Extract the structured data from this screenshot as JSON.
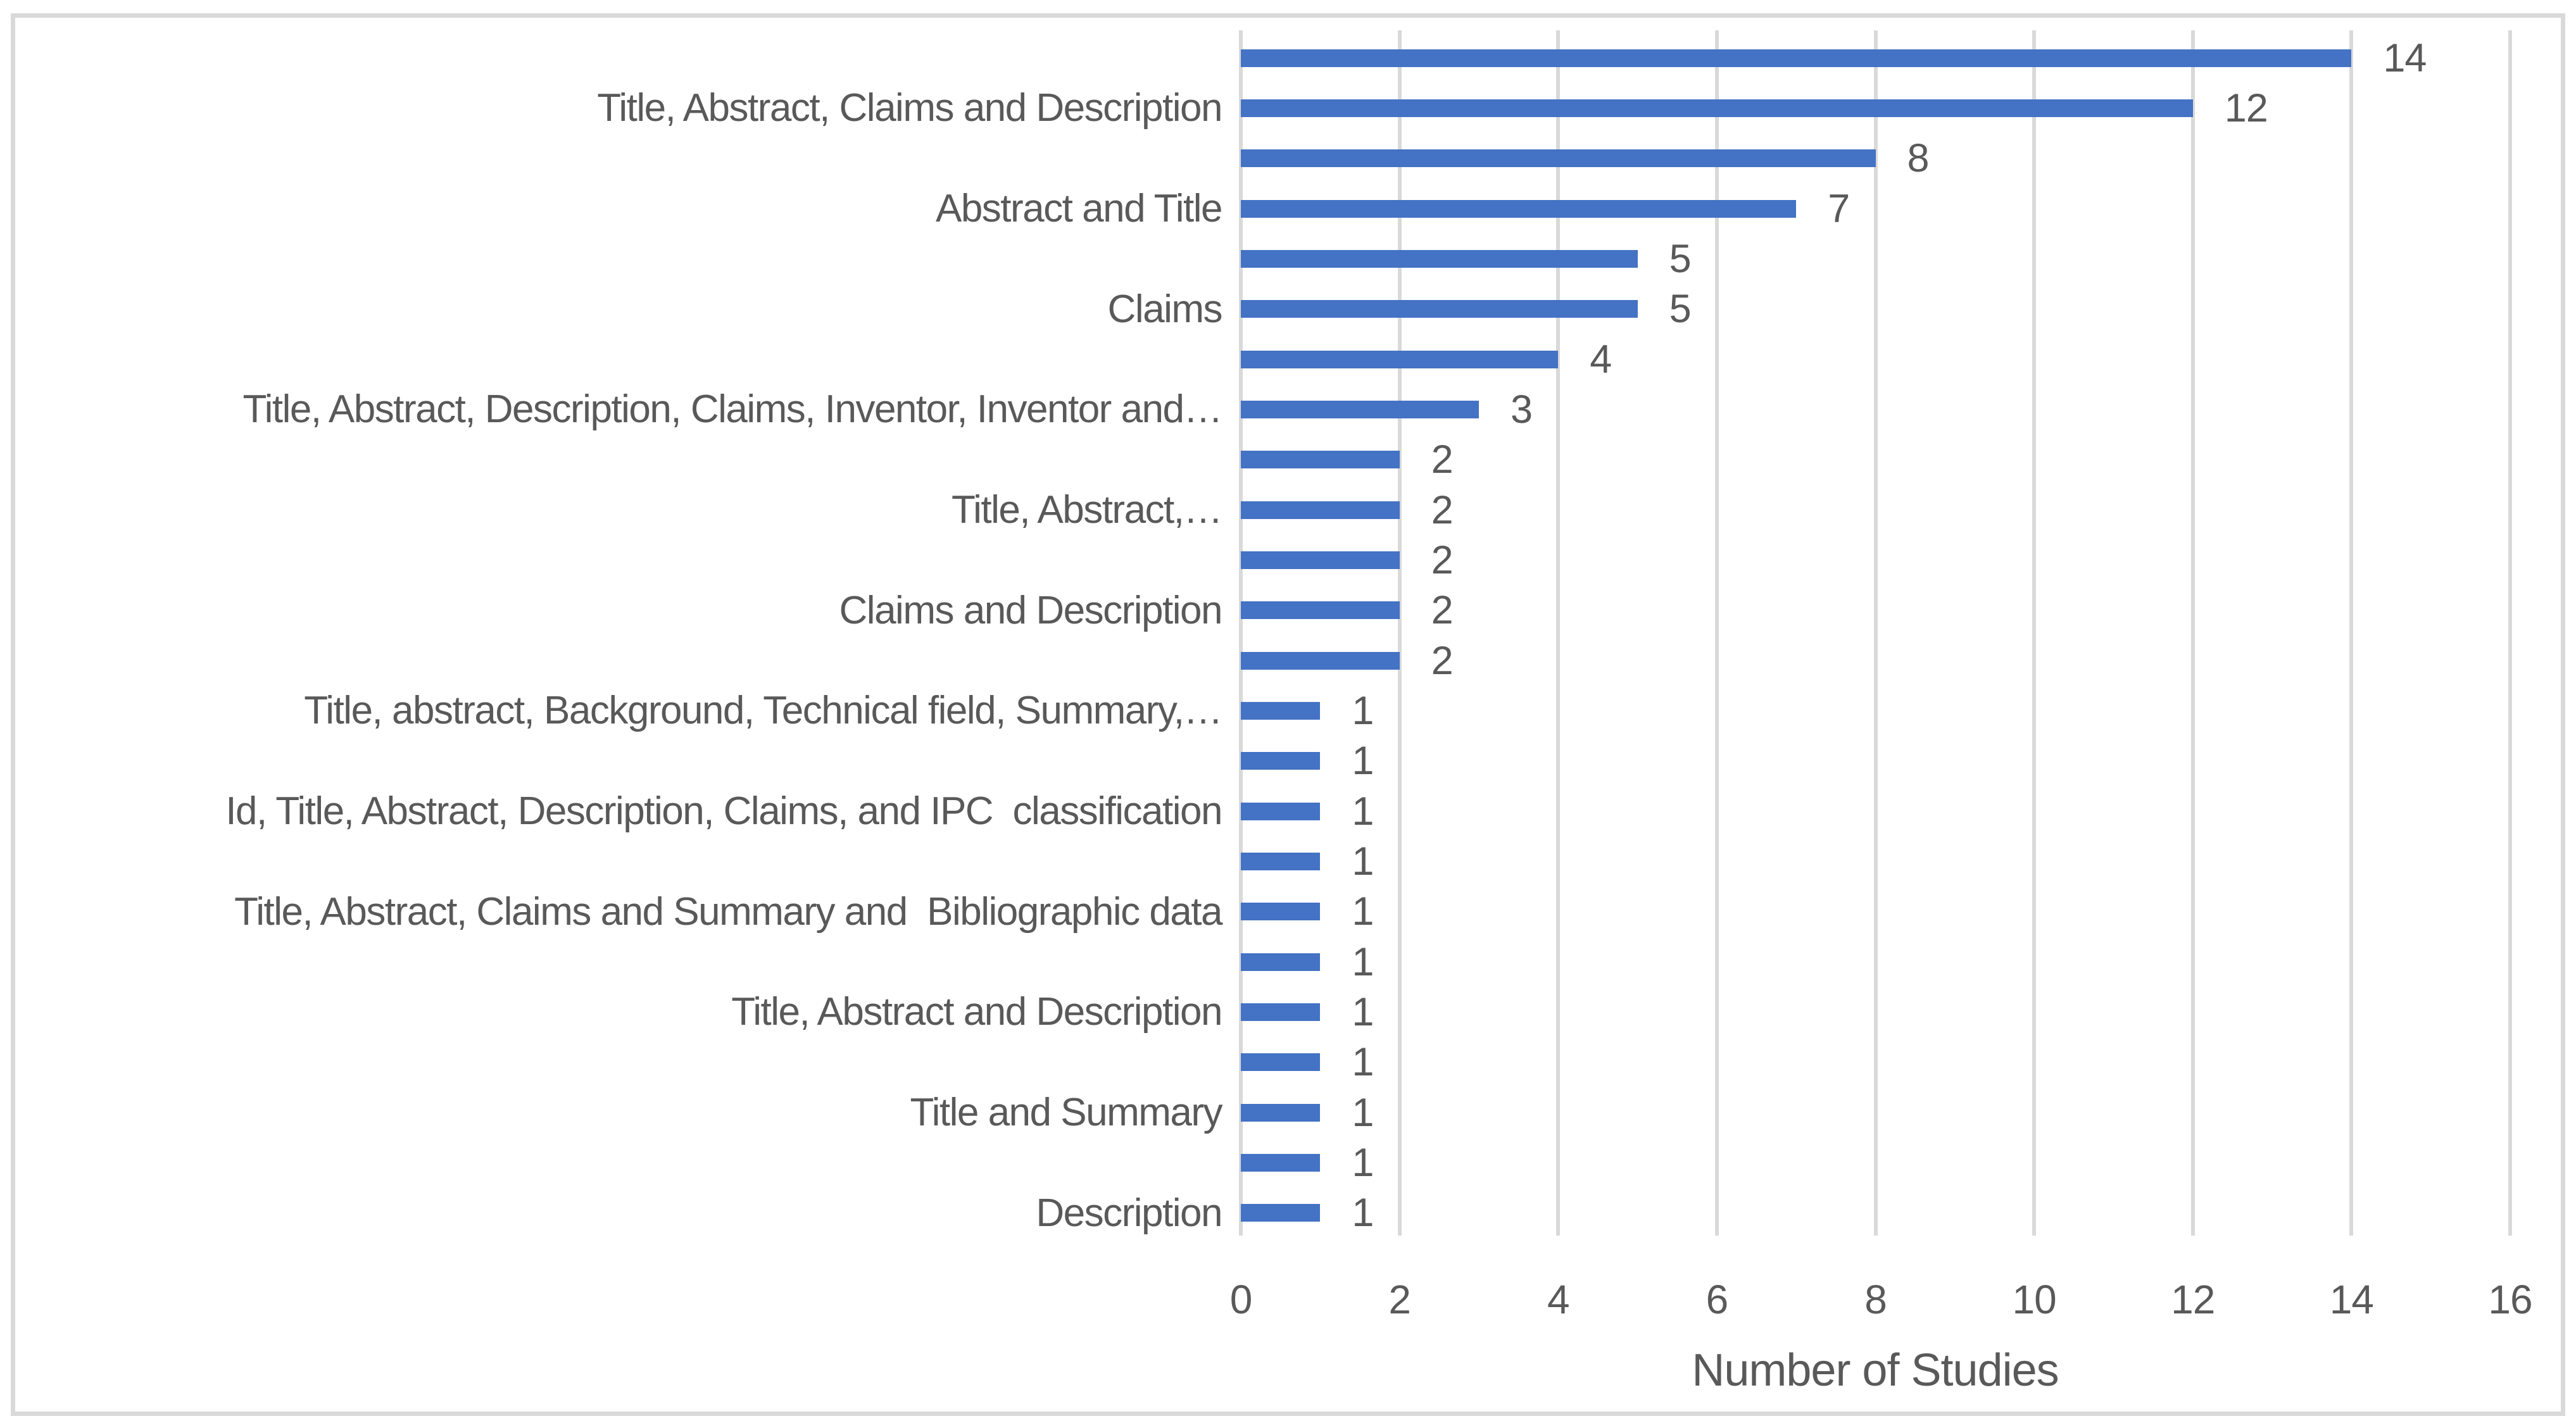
{
  "chart_data": {
    "type": "bar",
    "orientation": "horizontal",
    "title": "",
    "xlabel": "Number of Studies",
    "ylabel": "",
    "xlim": [
      0,
      16
    ],
    "x_ticks": [
      0,
      2,
      4,
      6,
      8,
      10,
      12,
      14,
      16
    ],
    "grid": "vertical-gridlines-on",
    "legend": "none",
    "values": [
      14,
      12,
      8,
      7,
      5,
      5,
      4,
      3,
      2,
      2,
      2,
      2,
      2,
      1,
      1,
      1,
      1,
      1,
      1,
      1,
      1,
      1,
      1,
      1
    ],
    "bar_value_labels": [
      "14",
      "12",
      "8",
      "7",
      "5",
      "5",
      "4",
      "3",
      "2",
      "2",
      "2",
      "2",
      "2",
      "1",
      "1",
      "1",
      "1",
      "1",
      "1",
      "1",
      "1",
      "1",
      "1",
      "1"
    ],
    "category_labels_shown": [
      {
        "row": 2,
        "label": "Title, Abstract, Claims and Description"
      },
      {
        "row": 4,
        "label": "Abstract and Title"
      },
      {
        "row": 6,
        "label": "Claims"
      },
      {
        "row": 8,
        "label": "Title, Abstract, Description, Claims, Inventor, Inventor and…"
      },
      {
        "row": 10,
        "label": "Title, Abstract,…"
      },
      {
        "row": 12,
        "label": "Claims and Description"
      },
      {
        "row": 14,
        "label": "Title, abstract, Background, Technical field, Summary,…"
      },
      {
        "row": 16,
        "label": "Id, Title, Abstract, Description, Claims, and IPC  classification"
      },
      {
        "row": 18,
        "label": "Title, Abstract, Claims and Summary and  Bibliographic data"
      },
      {
        "row": 20,
        "label": "Title, Abstract and Description"
      },
      {
        "row": 22,
        "label": "Title and Summary"
      },
      {
        "row": 24,
        "label": "Description"
      }
    ],
    "colors": {
      "bar": "#4472C4",
      "gridline": "#d9d9d9",
      "border": "#d9d9d9",
      "text": "#595959"
    }
  }
}
